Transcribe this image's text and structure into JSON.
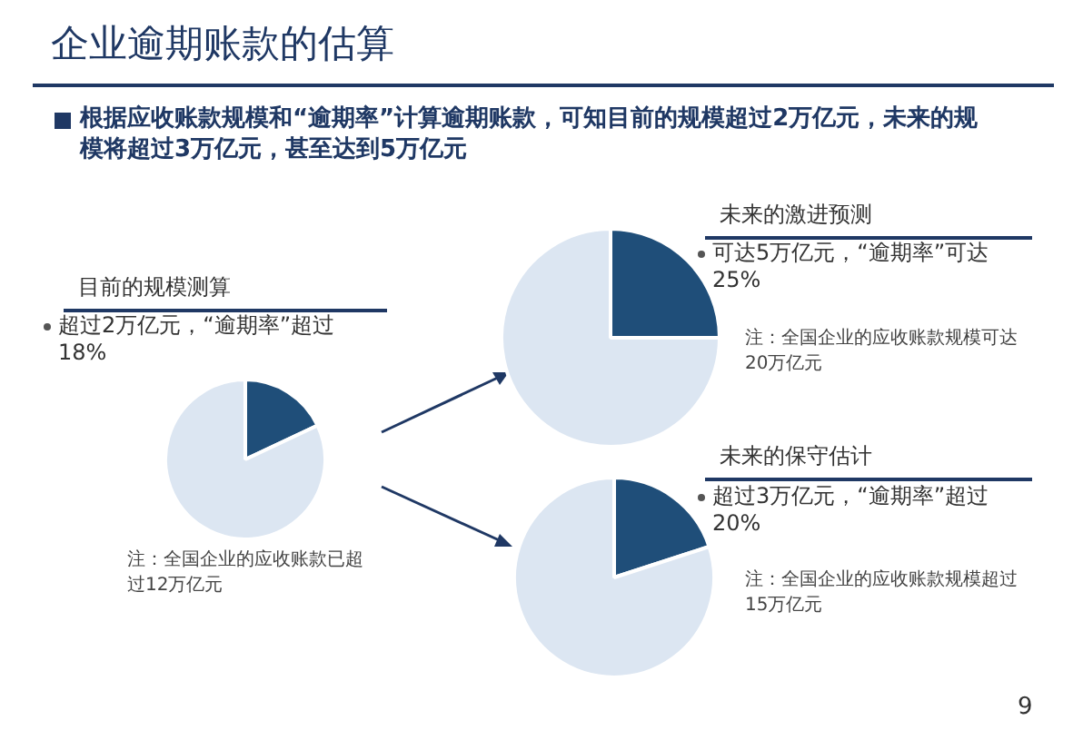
{
  "chart_data": [
    {
      "type": "other",
      "title": "企业逾期账款的估算",
      "subtitle": "根据应收账款规模和“逾期率”计算逾期账款，可知目前的规模超过2万亿元，未来的规模将超过3万亿元，甚至达到5万亿元",
      "annotations": [
        "9"
      ]
    },
    {
      "type": "pie",
      "title": "目前的规模测算",
      "categories": [
        null,
        null
      ],
      "values": [
        18,
        82
      ],
      "colors": [
        "#1f4e79",
        "#dce6f2"
      ],
      "annotations": [
        "超过2万亿元，“逾期率”超过18%",
        "注：全国企业的应收账款已超过12万亿元"
      ]
    },
    {
      "type": "pie",
      "title": "未来的激进预测",
      "categories": [
        null,
        null
      ],
      "values": [
        25,
        75
      ],
      "colors": [
        "#1f4e79",
        "#dce6f2"
      ],
      "annotations": [
        "可达5万亿元，“逾期率”可达25%",
        "注：全国企业的应收账款规模可达20万亿元"
      ]
    },
    {
      "type": "pie",
      "title": "未来的保守估计",
      "categories": [
        null,
        null
      ],
      "values": [
        20,
        80
      ],
      "colors": [
        "#1f4e79",
        "#dce6f2"
      ],
      "annotations": [
        "超过3万亿元，“逾期率”超过20%",
        "注：全国企业的应收账款规模超过15万亿元"
      ]
    }
  ]
}
